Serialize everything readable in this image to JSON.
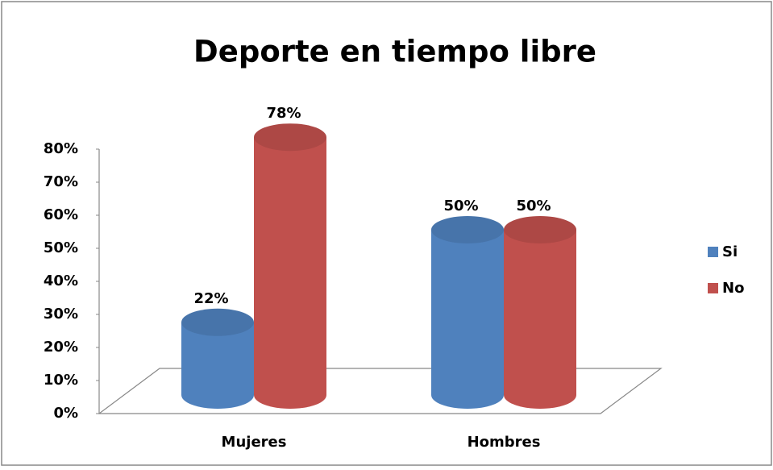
{
  "chart_data": {
    "type": "bar3d",
    "title": "Deporte en tiempo libre",
    "categories": [
      "Mujeres",
      "Hombres"
    ],
    "series": [
      {
        "name": "Si",
        "color": "#4f81bd",
        "values": [
          22,
          50
        ],
        "value_labels": [
          "22%",
          "50%"
        ]
      },
      {
        "name": "No",
        "color": "#c0504d",
        "values": [
          78,
          50
        ],
        "value_labels": [
          "78%",
          "50%"
        ]
      }
    ],
    "ylim": [
      0,
      80
    ],
    "yticks": [
      {
        "value": 0,
        "label": "0%"
      },
      {
        "value": 10,
        "label": "10%"
      },
      {
        "value": 20,
        "label": "20%"
      },
      {
        "value": 30,
        "label": "30%"
      },
      {
        "value": 40,
        "label": "40%"
      },
      {
        "value": 50,
        "label": "50%"
      },
      {
        "value": 60,
        "label": "60%"
      },
      {
        "value": 70,
        "label": "70%"
      },
      {
        "value": 80,
        "label": "80%"
      }
    ],
    "legend": "right"
  }
}
